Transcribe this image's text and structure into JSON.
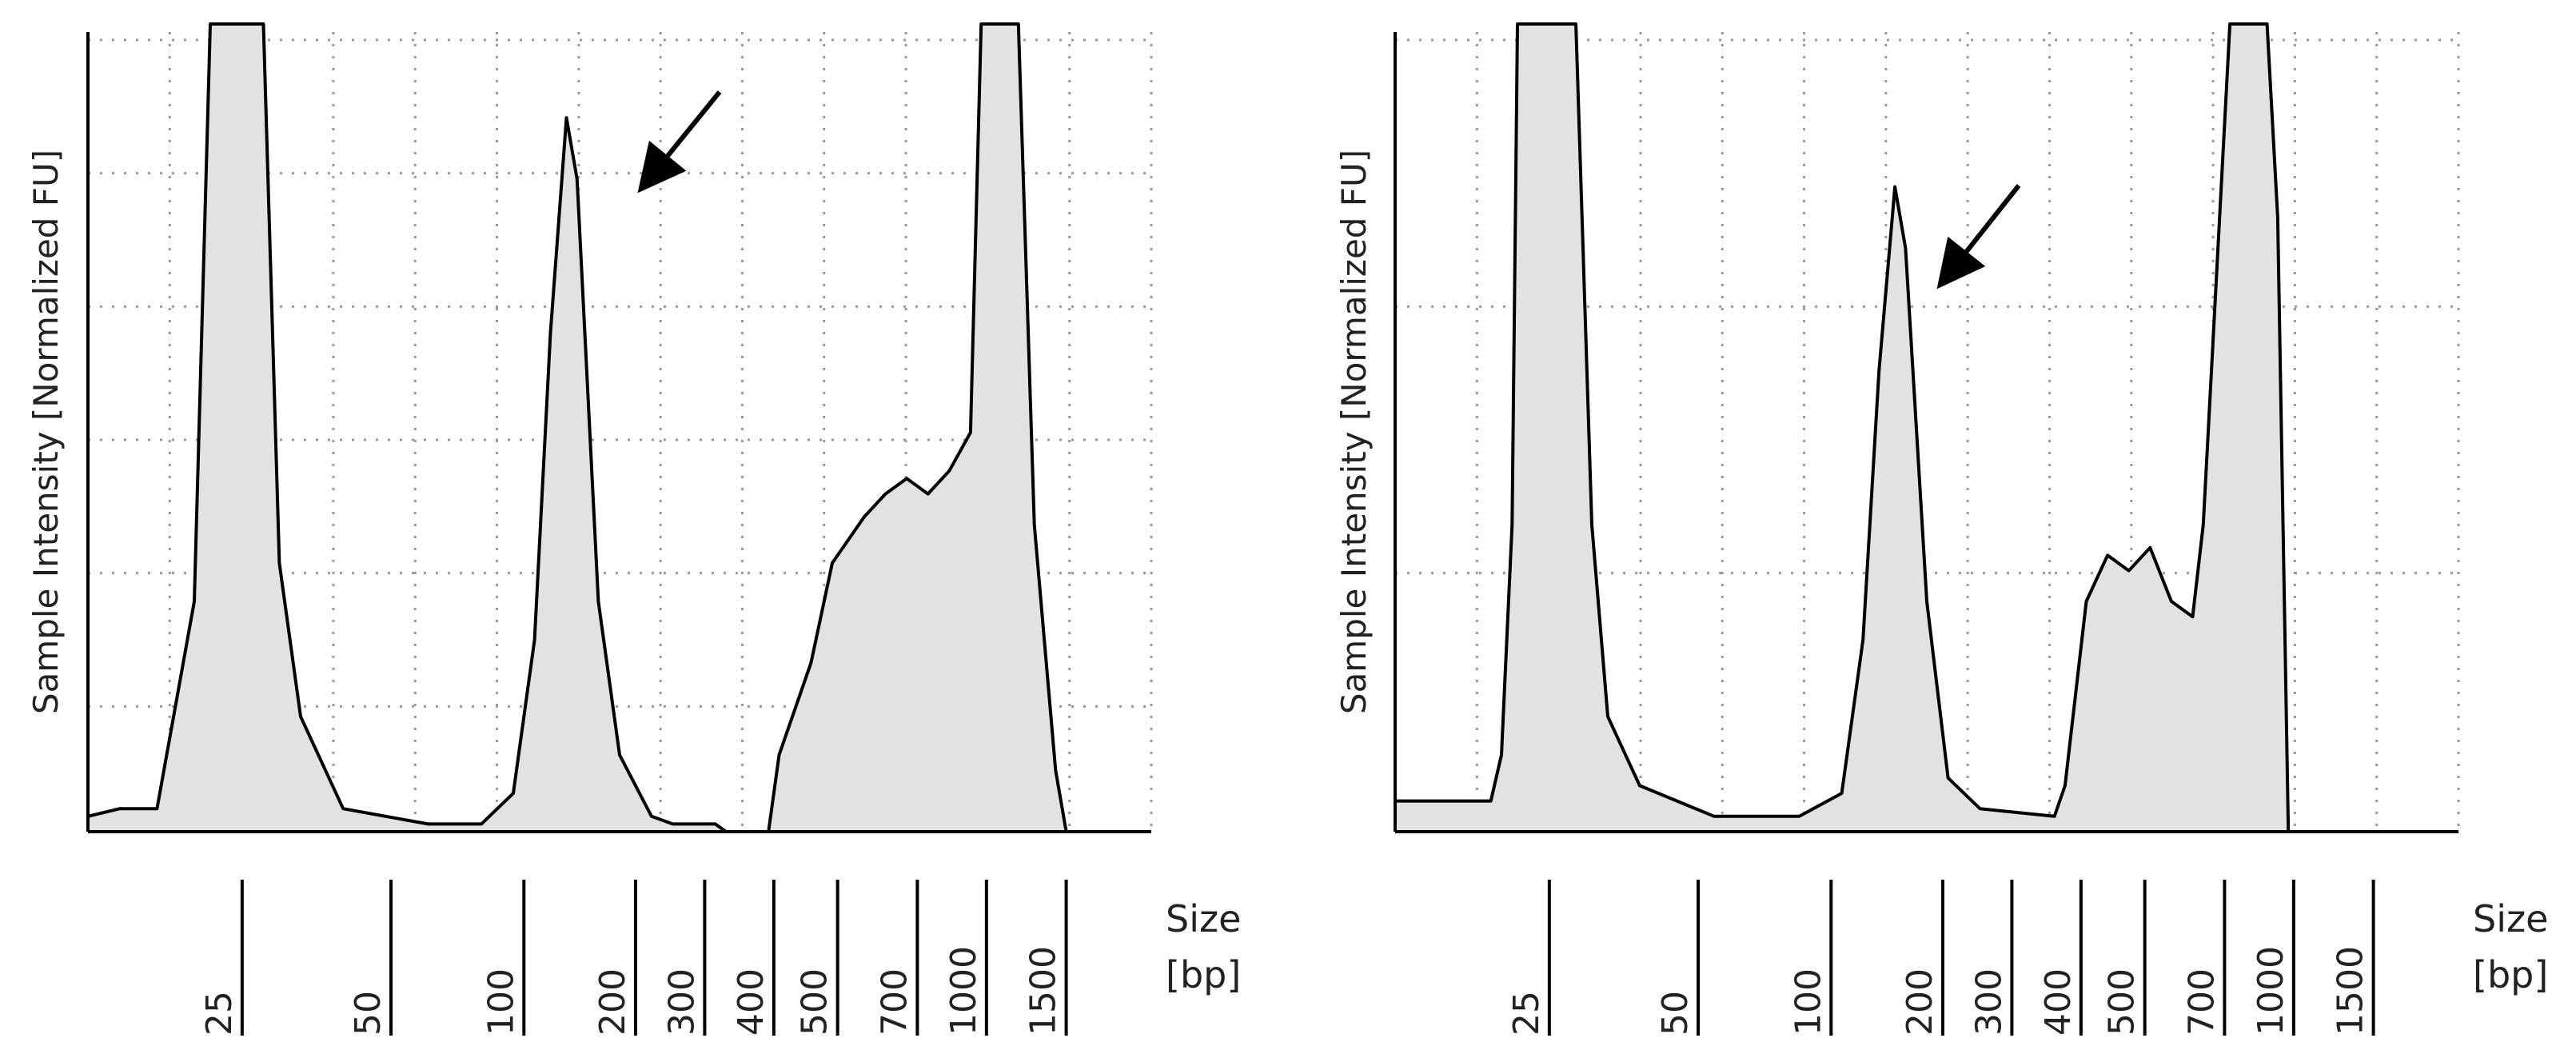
{
  "colors": {
    "fill": "#e2e2e2",
    "line": "#000000",
    "grid": "#999999",
    "axis": "#000000",
    "ylabel": "#222222"
  },
  "chart_data": [
    {
      "type": "area",
      "ylabel": "Sample Intensity [Normalized FU]",
      "size_label_line1": "Size",
      "size_label_line2": "[bp]",
      "ladder_ticks": [
        "25",
        "50",
        "100",
        "200",
        "300",
        "400",
        "500",
        "700",
        "1000",
        "1500"
      ],
      "grid": true,
      "annotation": "arrow pointing to the ~200 bp peak",
      "series": [
        {
          "values": []
        }
      ]
    },
    {
      "type": "area",
      "ylabel": "Sample Intensity [Normalized FU]",
      "size_label_line1": "Size",
      "size_label_line2": "[bp]",
      "ladder_ticks": [
        "25",
        "50",
        "100",
        "200",
        "300",
        "400",
        "500",
        "700",
        "1000",
        "1500"
      ],
      "grid": true,
      "annotation": "arrow pointing to the ~200 bp peak",
      "series": [
        {
          "values": []
        }
      ]
    }
  ]
}
